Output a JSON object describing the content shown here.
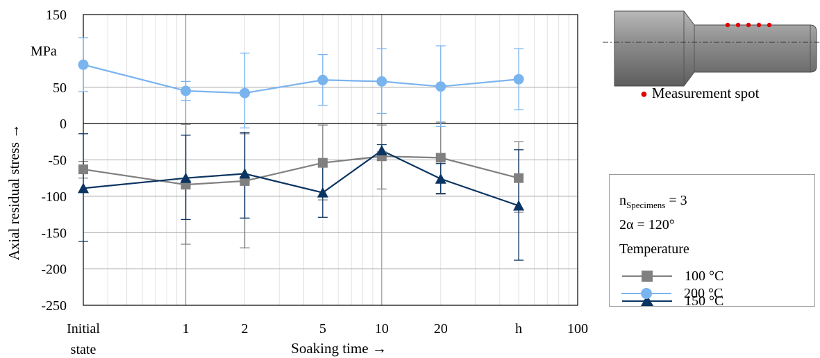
{
  "chart_data": {
    "type": "line",
    "x_scale": "log",
    "x_ticks": [
      {
        "x": 0.3,
        "label": "Initial"
      },
      {
        "x": 1,
        "label": "1"
      },
      {
        "x": 2,
        "label": "2"
      },
      {
        "x": 5,
        "label": "5"
      },
      {
        "x": 10,
        "label": "10"
      },
      {
        "x": 20,
        "label": "20"
      },
      {
        "x": 50,
        "label": "h"
      },
      {
        "x": 100,
        "label": "100"
      }
    ],
    "x_tick_second_line": "state",
    "xlabel": "Soaking time →",
    "ylabel": "Axial residual stress →",
    "y_unit_label": "MPa",
    "ylim": [
      -250,
      150
    ],
    "y_ticks": [
      150,
      50,
      0,
      -50,
      -100,
      -150,
      -200,
      -250
    ],
    "grid": true,
    "x": [
      0.3,
      1,
      2,
      5,
      10,
      20,
      50
    ],
    "series": [
      {
        "name": "100 °C",
        "color": "#808080",
        "marker": "square",
        "y": [
          -63,
          -84,
          -79,
          -54,
          -45,
          -47,
          -75
        ],
        "err_low": [
          -75,
          -166,
          -171,
          -105,
          -90,
          -97,
          -122
        ],
        "err_high": [
          -52,
          -1,
          -14,
          -2,
          -2,
          2,
          -25
        ]
      },
      {
        "name": "150 °C",
        "color": "#0a3461",
        "marker": "triangle",
        "y": [
          -89,
          -75,
          -69,
          -95,
          -37,
          -76,
          -113
        ],
        "err_low": [
          -162,
          -132,
          -130,
          -129,
          -45,
          -96,
          -188
        ],
        "err_high": [
          -14,
          -16,
          -12,
          -59,
          -29,
          -55,
          -36
        ]
      },
      {
        "name": "200 °C",
        "color": "#7ab4ef",
        "marker": "circle",
        "y": [
          81,
          45,
          42,
          60,
          58,
          51,
          61
        ],
        "err_low": [
          44,
          32,
          -6,
          25,
          14,
          -4,
          19
        ],
        "err_high": [
          118,
          58,
          97,
          95,
          103,
          107,
          103
        ]
      }
    ]
  },
  "legend": {
    "line1_text": "n",
    "line1_sub": "Specimens",
    "line1_rest": " = 3",
    "line2": "2α = 120°",
    "line3": "Temperature",
    "entries": [
      "100 °C",
      "150 °C",
      "200 °C"
    ]
  },
  "specimen": {
    "caption": "Measurement spot",
    "spot_color": "#e00000",
    "spot_count": 5
  }
}
